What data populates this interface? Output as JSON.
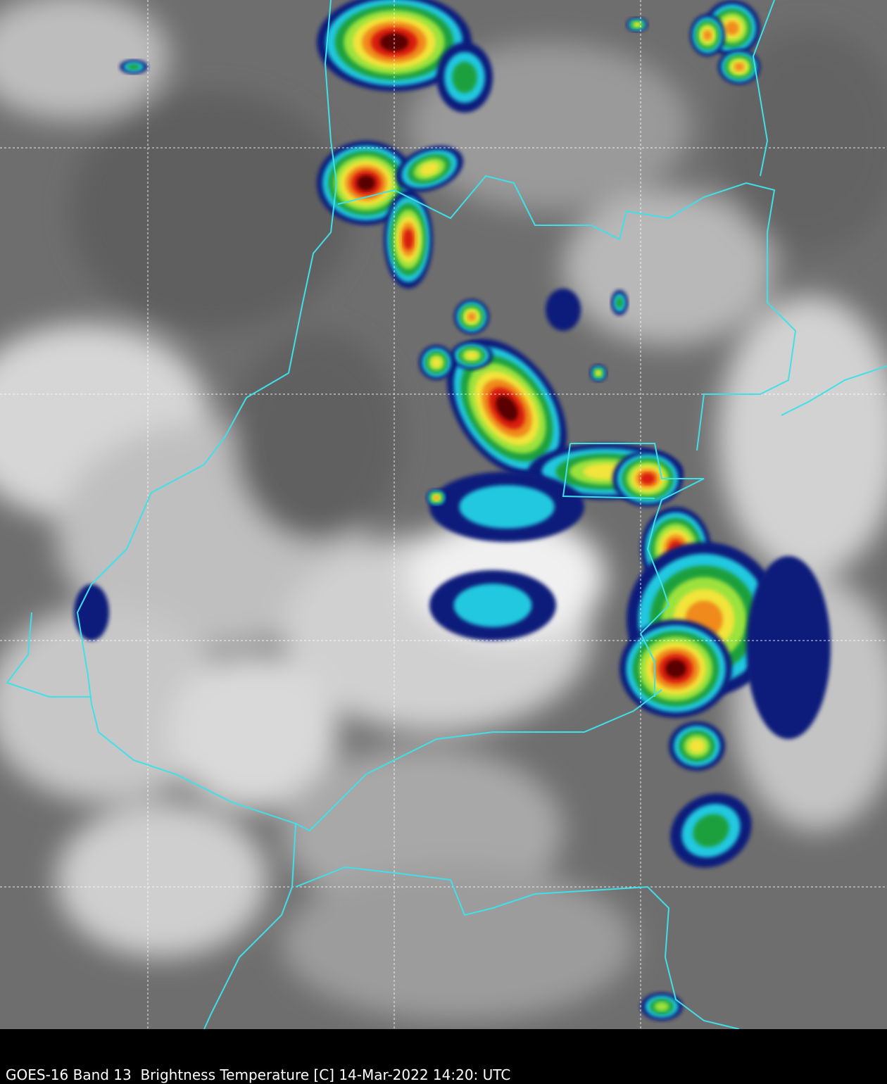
{
  "caption": "GOES-16 Band 13  Brightness Temperature [C] 14-Mar-2022 14:20: UTC"
}
